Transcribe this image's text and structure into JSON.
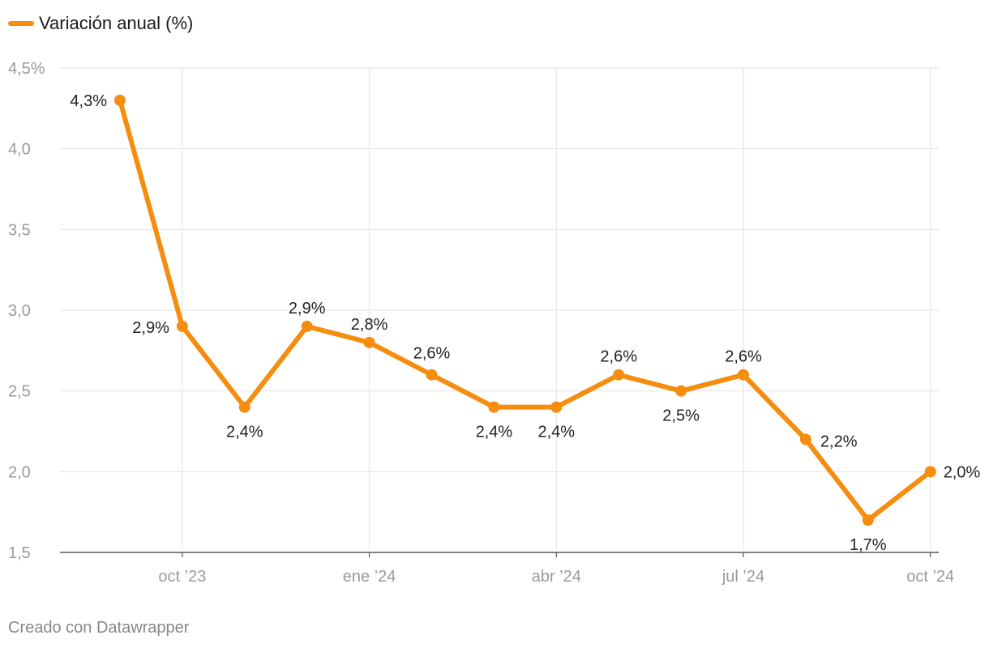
{
  "chart_data": {
    "type": "line",
    "legend": [
      {
        "label": "Variación anual (%)",
        "color": "#f58d0f"
      }
    ],
    "series": [
      {
        "name": "Variación anual (%)",
        "color": "#f58d0f",
        "x": [
          "sep '23",
          "oct '23",
          "nov '23",
          "dic '23",
          "ene '24",
          "feb '24",
          "mar '24",
          "abr '24",
          "may '24",
          "jun '24",
          "jul '24",
          "ago '24",
          "sep '24",
          "oct '24"
        ],
        "values": [
          4.3,
          2.9,
          2.4,
          2.9,
          2.8,
          2.6,
          2.4,
          2.4,
          2.6,
          2.5,
          2.6,
          2.2,
          1.7,
          2.0
        ],
        "labels": [
          "4,3%",
          "2,9%",
          "2,4%",
          "2,9%",
          "2,8%",
          "2,6%",
          "2,4%",
          "2,4%",
          "2,6%",
          "2,5%",
          "2,6%",
          "2,2%",
          "1,7%",
          "2,0%"
        ]
      }
    ],
    "x_ticks": [
      "oct ’23",
      "ene ’24",
      "abr ’24",
      "jul ’24",
      "oct ’24"
    ],
    "y_ticks": [
      "1,5",
      "2,0",
      "2,5",
      "3,0",
      "3,5",
      "4,0",
      "4,5%"
    ],
    "ylim": [
      1.5,
      4.5
    ],
    "grid": true
  },
  "footer": "Creado con Datawrapper"
}
